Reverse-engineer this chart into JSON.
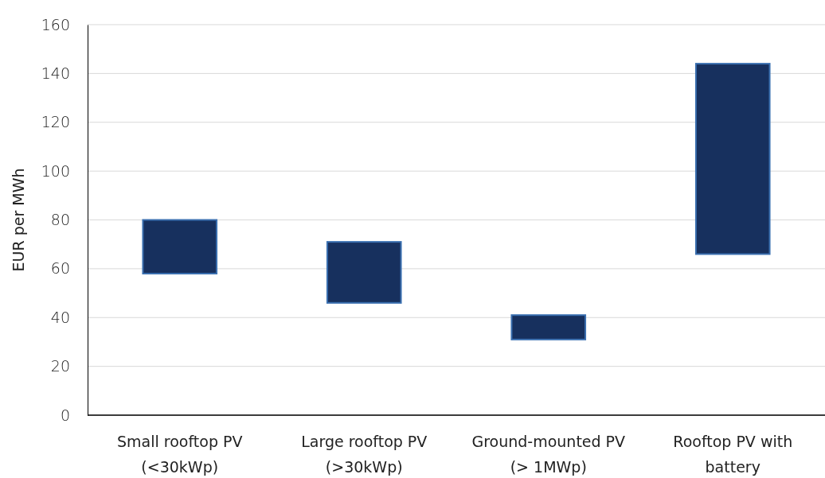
{
  "chart_data": {
    "type": "bar",
    "ylabel": "EUR per MWh",
    "categories": [
      "Small rooftop PV\n(<30kWp)",
      "Large rooftop PV\n(>30kWp)",
      "Ground-mounted PV\n(> 1MWp)",
      "Rooftop PV with\nbattery"
    ],
    "base": [
      58,
      46,
      31,
      66
    ],
    "values": [
      22,
      25,
      10,
      78
    ],
    "color": "#17305e",
    "ylim": [
      0,
      160
    ],
    "yticks": [
      0,
      20,
      40,
      60,
      80,
      100,
      120,
      140,
      160
    ],
    "grid": "y"
  }
}
